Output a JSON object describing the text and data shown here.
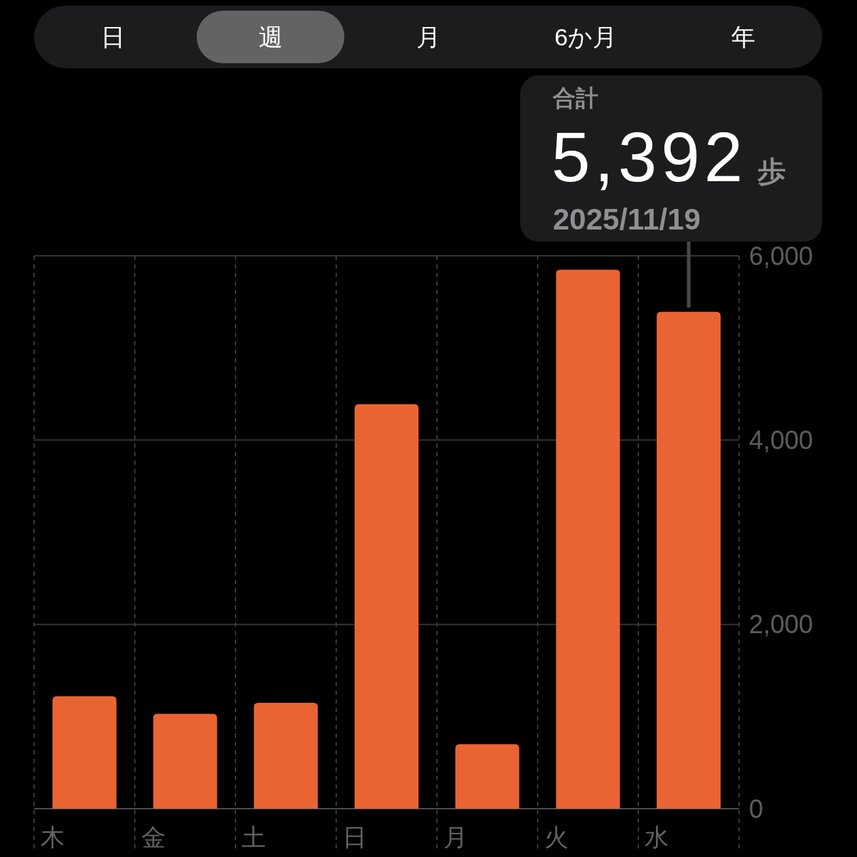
{
  "chart_data": {
    "type": "bar",
    "categories": [
      "木",
      "金",
      "土",
      "日",
      "月",
      "火",
      "水"
    ],
    "values": [
      1220,
      1030,
      1150,
      4390,
      700,
      5850,
      5392
    ],
    "color": "#ea6433",
    "ylim": [
      0,
      6000
    ],
    "yticks": [
      0,
      {
        "value": 2000,
        "label": "2,000"
      },
      {
        "value": 4000,
        "label": "4,000"
      },
      {
        "value": 6000,
        "label": "6,000"
      }
    ],
    "grid": true,
    "annotations": [
      "日",
      "週",
      "月",
      "6か月",
      "年",
      "合計",
      {
        "text": "5,392",
        "x": "水",
        "y": 5392
      },
      "歩",
      "2025/11/19"
    ]
  }
}
